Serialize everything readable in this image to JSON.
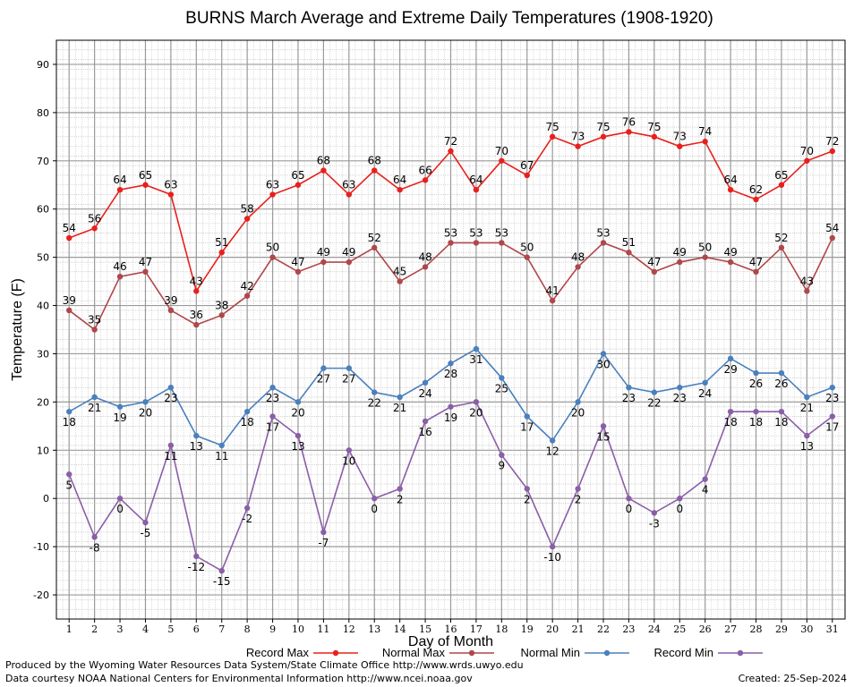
{
  "chart_data": {
    "type": "line",
    "title": "BURNS March Average and Extreme Daily Temperatures (1908-1920)",
    "xlabel": "Day of Month",
    "ylabel": "Temperature (F)",
    "ylim": [
      -25,
      95
    ],
    "xlim": [
      0.5,
      31.5
    ],
    "yticks": [
      -20,
      -10,
      0,
      10,
      20,
      30,
      40,
      50,
      60,
      70,
      80,
      90
    ],
    "x": [
      1,
      2,
      3,
      4,
      5,
      6,
      7,
      8,
      9,
      10,
      11,
      12,
      13,
      14,
      15,
      16,
      17,
      18,
      19,
      20,
      21,
      22,
      23,
      24,
      25,
      26,
      27,
      28,
      29,
      30,
      31
    ],
    "grid": true,
    "legend_placement": "bottom",
    "series": [
      {
        "name": "Record Max",
        "color": "#e8201c",
        "values": [
          54,
          56,
          64,
          65,
          63,
          43,
          51,
          58,
          63,
          65,
          68,
          63,
          68,
          64,
          66,
          72,
          64,
          70,
          67,
          75,
          73,
          75,
          76,
          75,
          73,
          74,
          64,
          62,
          65,
          70,
          72
        ]
      },
      {
        "name": "Normal Max",
        "color": "#b0474a",
        "values": [
          39,
          35,
          46,
          47,
          39,
          36,
          38,
          42,
          50,
          47,
          49,
          49,
          52,
          45,
          48,
          53,
          53,
          53,
          50,
          41,
          48,
          53,
          51,
          47,
          49,
          50,
          49,
          47,
          52,
          43,
          54
        ]
      },
      {
        "name": "Normal Min",
        "color": "#4a80bd",
        "values": [
          18,
          21,
          19,
          20,
          23,
          13,
          11,
          18,
          23,
          20,
          27,
          27,
          22,
          21,
          24,
          28,
          31,
          25,
          17,
          12,
          20,
          30,
          23,
          22,
          23,
          24,
          29,
          26,
          26,
          21,
          23
        ]
      },
      {
        "name": "Record Min",
        "color": "#8a5ea8",
        "values": [
          5,
          -8,
          0,
          -5,
          11,
          -12,
          -15,
          -2,
          17,
          13,
          -7,
          10,
          0,
          2,
          16,
          19,
          20,
          9,
          2,
          -10,
          2,
          15,
          0,
          -3,
          0,
          4,
          18,
          18,
          18,
          13,
          17
        ]
      }
    ]
  },
  "footer": {
    "produced_by": "Produced by the Wyoming Water Resources Data System/State Climate Office http://www.wrds.uwyo.edu",
    "data_courtesy": "Data courtesy NOAA National Centers for Environmental Information http://www.ncei.noaa.gov",
    "created": "Created:  25-Sep-2024"
  }
}
